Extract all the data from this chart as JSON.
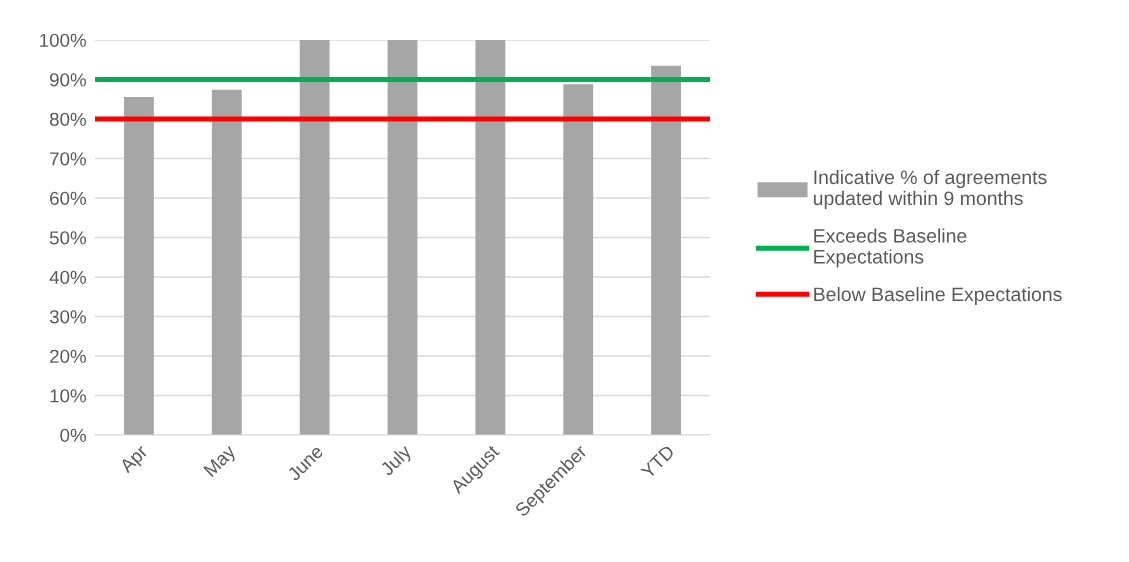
{
  "chart_data": {
    "type": "bar",
    "categories": [
      "Apr",
      "May",
      "June",
      "July",
      "August",
      "September",
      "YTD"
    ],
    "series": [
      {
        "name": "Indicative % of agreements\nupdated within 9 months",
        "color": "#a6a6a6",
        "values": [
          85.6,
          87.4,
          100,
          100,
          100,
          88.8,
          93.5
        ]
      }
    ],
    "ref_lines": [
      {
        "axis": "y",
        "value": 90,
        "label": "Exceeds Baseline\nExpectations",
        "color": "#00b050"
      },
      {
        "axis": "y",
        "value": 80,
        "label": "Below Baseline Expectations",
        "color": "#ff0000"
      }
    ],
    "ylim": [
      0,
      100
    ],
    "yticks": [
      {
        "value": 0,
        "label": "0%"
      },
      {
        "value": 10,
        "label": "10%"
      },
      {
        "value": 20,
        "label": "20%"
      },
      {
        "value": 30,
        "label": "30%"
      },
      {
        "value": 40,
        "label": "40%"
      },
      {
        "value": 50,
        "label": "50%"
      },
      {
        "value": 60,
        "label": "60%"
      },
      {
        "value": 70,
        "label": "70%"
      },
      {
        "value": 80,
        "label": "80%"
      },
      {
        "value": 90,
        "label": "90%"
      },
      {
        "value": 100,
        "label": "100%"
      }
    ],
    "grid": "y",
    "legend": "right"
  }
}
